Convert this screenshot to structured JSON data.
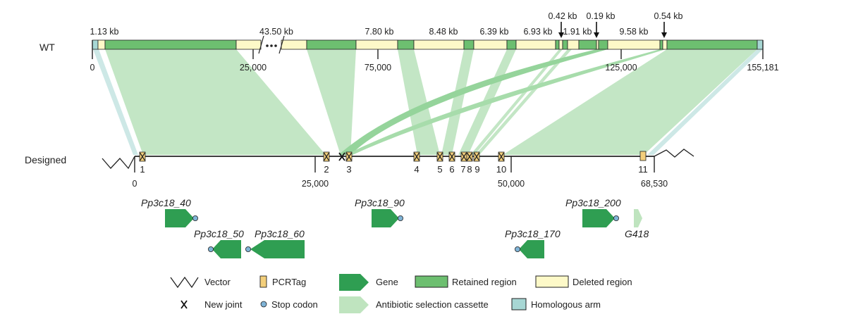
{
  "rows": {
    "wt": "WT",
    "designed": "Designed"
  },
  "wt_sizes": [
    "1.13 kb",
    "43.50 kb",
    "7.80 kb",
    "8.48 kb",
    "6.39 kb",
    "6.93 kb",
    "1.91 kb",
    "9.58 kb"
  ],
  "wt_arrow_sizes": [
    "0.42 kb",
    "0.19 kb",
    "0.54 kb"
  ],
  "wt_ticks": [
    "0",
    "25,000",
    "75,000",
    "125,000",
    "155,181"
  ],
  "designed_ticks": [
    "0",
    "25,000",
    "50,000",
    "68,530"
  ],
  "joint_labels": [
    "1",
    "2",
    "3",
    "4",
    "5",
    "6",
    "7",
    "8",
    "9",
    "10",
    "11"
  ],
  "genes": [
    "Pp3c18_40",
    "Pp3c18_50",
    "Pp3c18_60",
    "Pp3c18_90",
    "Pp3c18_170",
    "Pp3c18_200",
    "G418"
  ],
  "legend": {
    "vector": "Vector",
    "pcrtag": "PCRTag",
    "gene": "Gene",
    "retained": "Retained region",
    "deleted": "Deleted region",
    "new_joint": "New joint",
    "stop_codon": "Stop codon",
    "cassette": "Antibiotic selection cassette",
    "homologous": "Homologous arm"
  },
  "colors": {
    "retained": "#6dbf70",
    "deleted": "#fdf9c8",
    "homologous": "#a7d7d4",
    "gene": "#2f9e52",
    "cassette": "#bfe4bf",
    "pcrtag": "#f3cf7b",
    "stop": "#7fb3d6",
    "link": "#c3e6c5"
  }
}
